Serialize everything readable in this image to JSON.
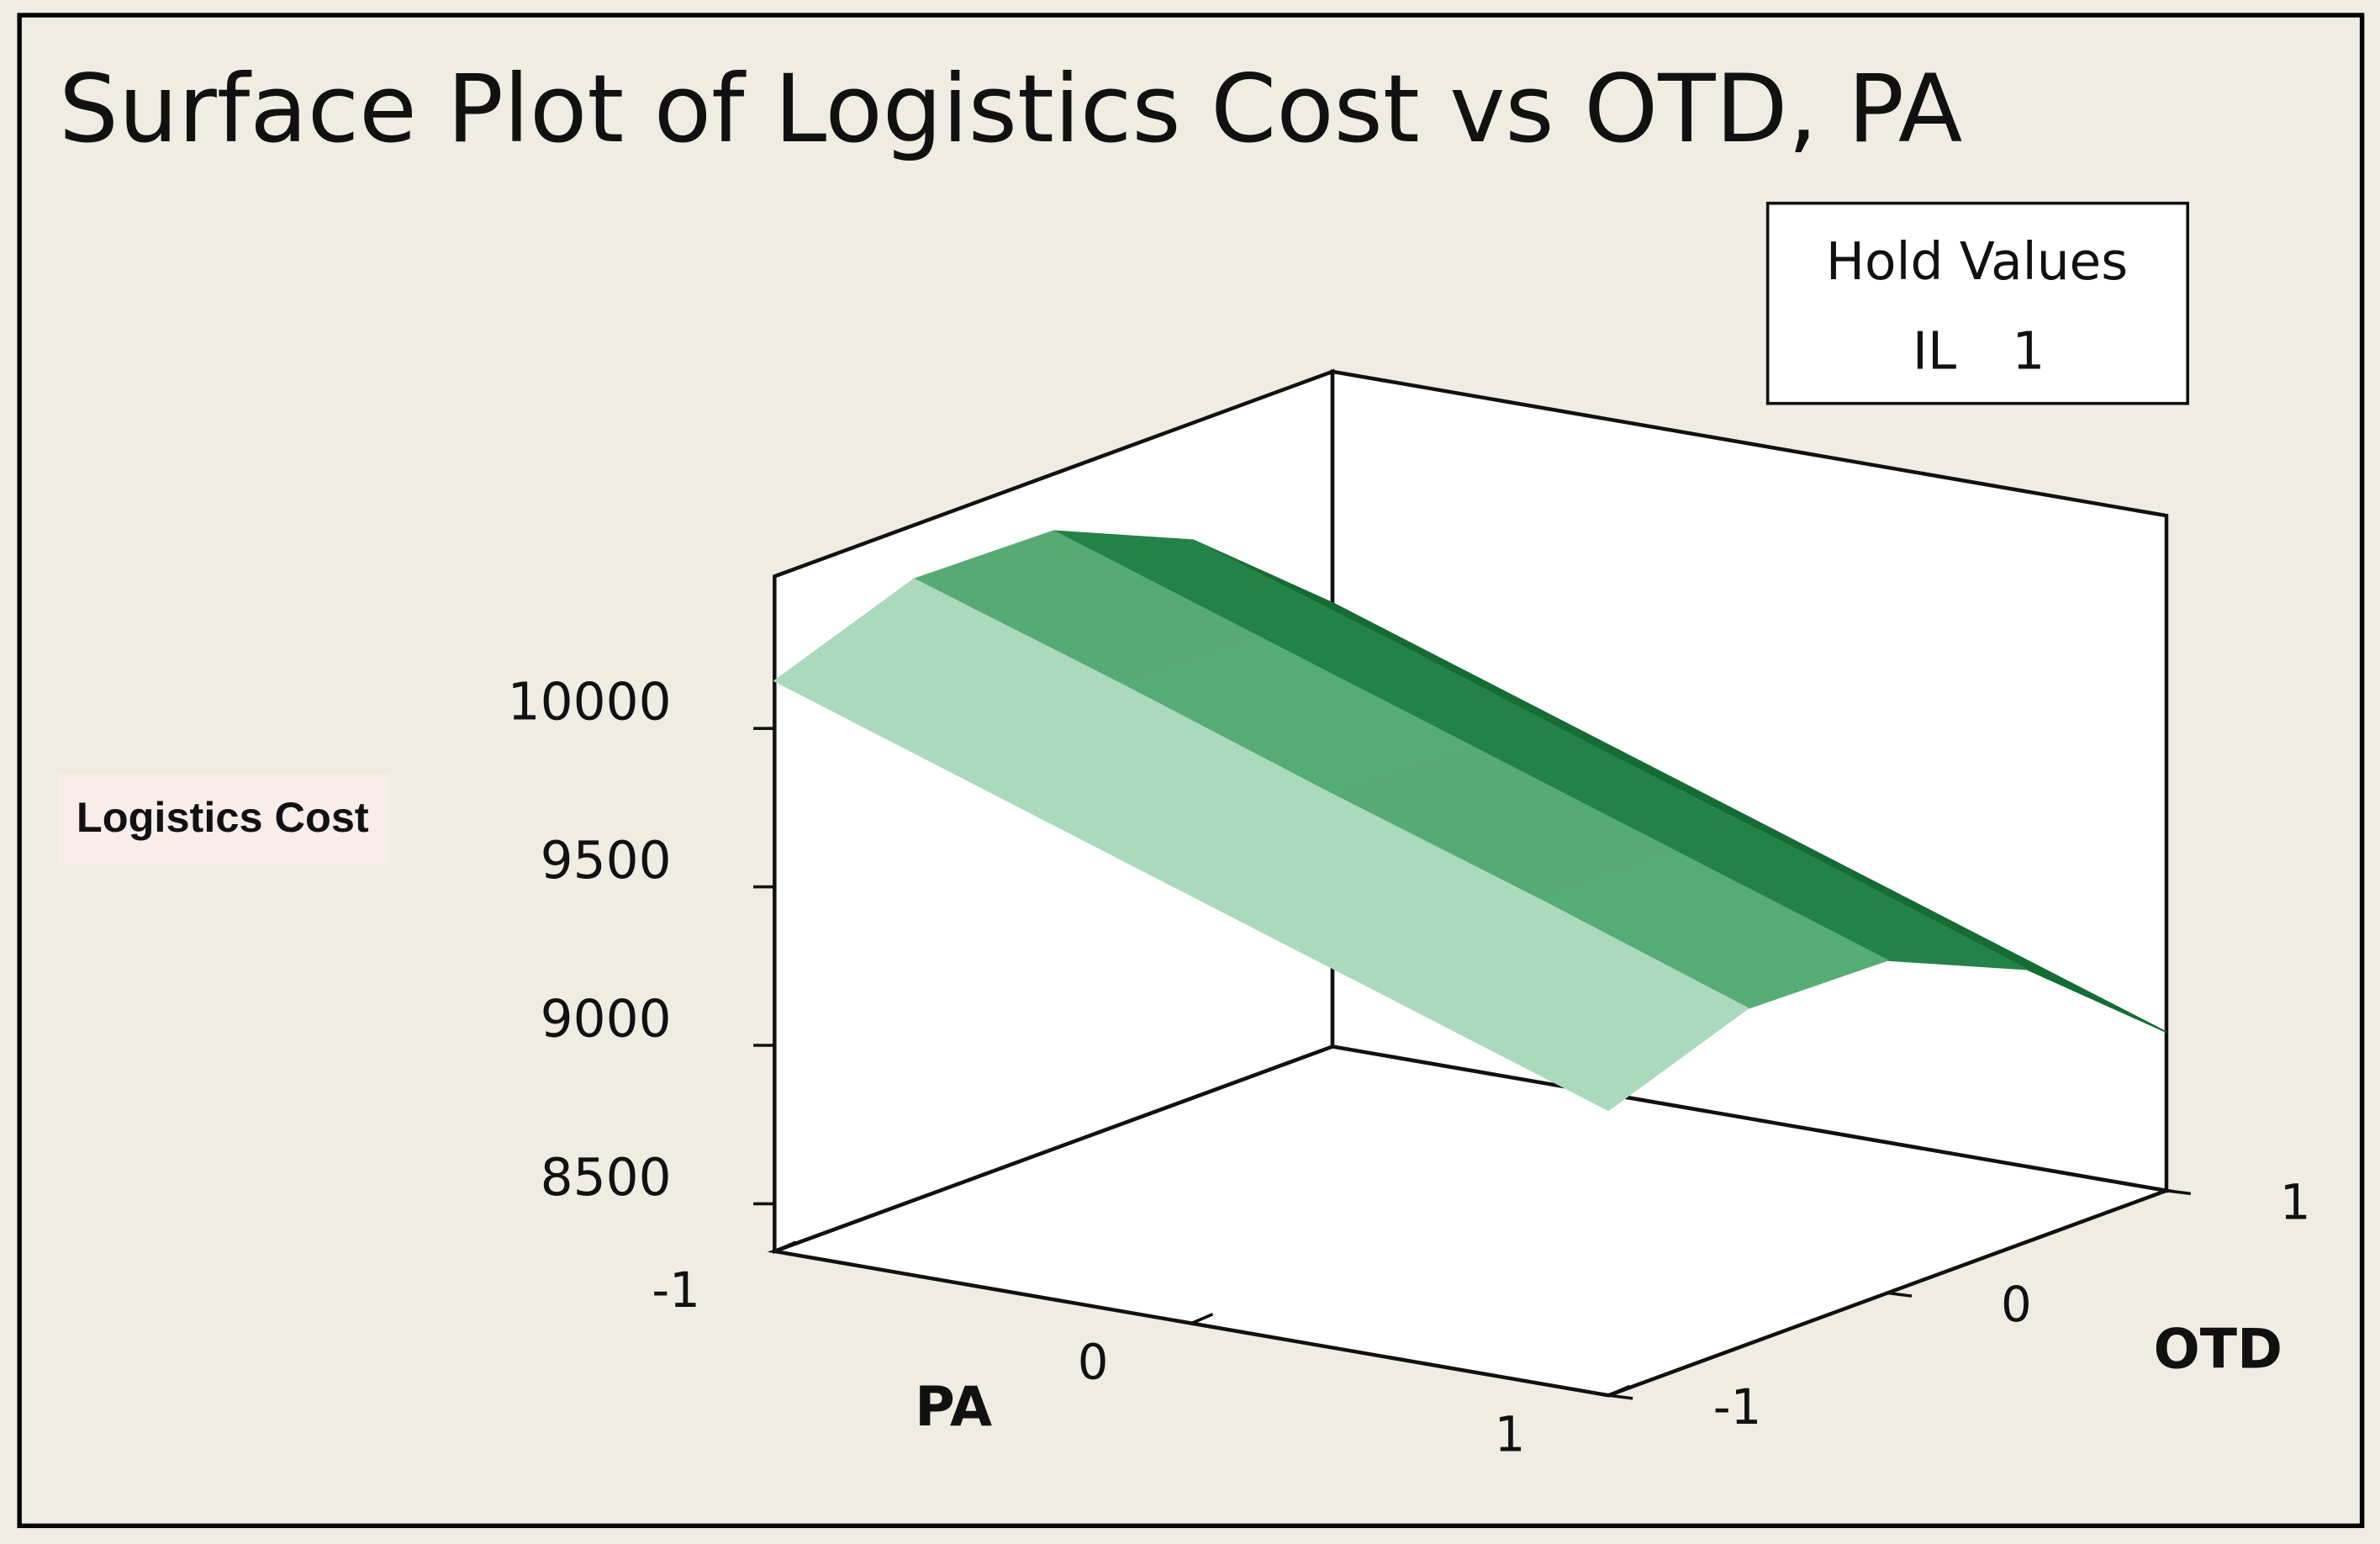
{
  "chart_data": {
    "type": "surface",
    "title": "Surface Plot of Logistics Cost vs OTD, PA",
    "hold_values": {
      "title": "Hold Values",
      "name": "IL",
      "value": 1
    },
    "x_label": "PA",
    "y_label": "OTD",
    "z_label": "Logistics Cost",
    "x": [
      -1,
      -0.5,
      0,
      0.5,
      1
    ],
    "y": [
      -1,
      -0.5,
      0,
      0.5,
      1
    ],
    "z": [
      [
        10150,
        10310,
        10300,
        10110,
        9750
      ],
      [
        9925,
        10090,
        10075,
        9890,
        9525
      ],
      [
        9700,
        9860,
        9850,
        9660,
        9300
      ],
      [
        9475,
        9640,
        9625,
        9440,
        9075
      ],
      [
        9250,
        9410,
        9400,
        9210,
        8850
      ]
    ],
    "color": "#1e9e4c",
    "xlim": [
      -1,
      1
    ],
    "ylim": [
      -1,
      1
    ],
    "zlim": [
      8350,
      10480
    ],
    "xticks": [
      -1,
      0,
      1
    ],
    "yticks": [
      -1,
      0,
      1
    ],
    "zticks": [
      8500,
      9000,
      9500,
      10000
    ]
  }
}
